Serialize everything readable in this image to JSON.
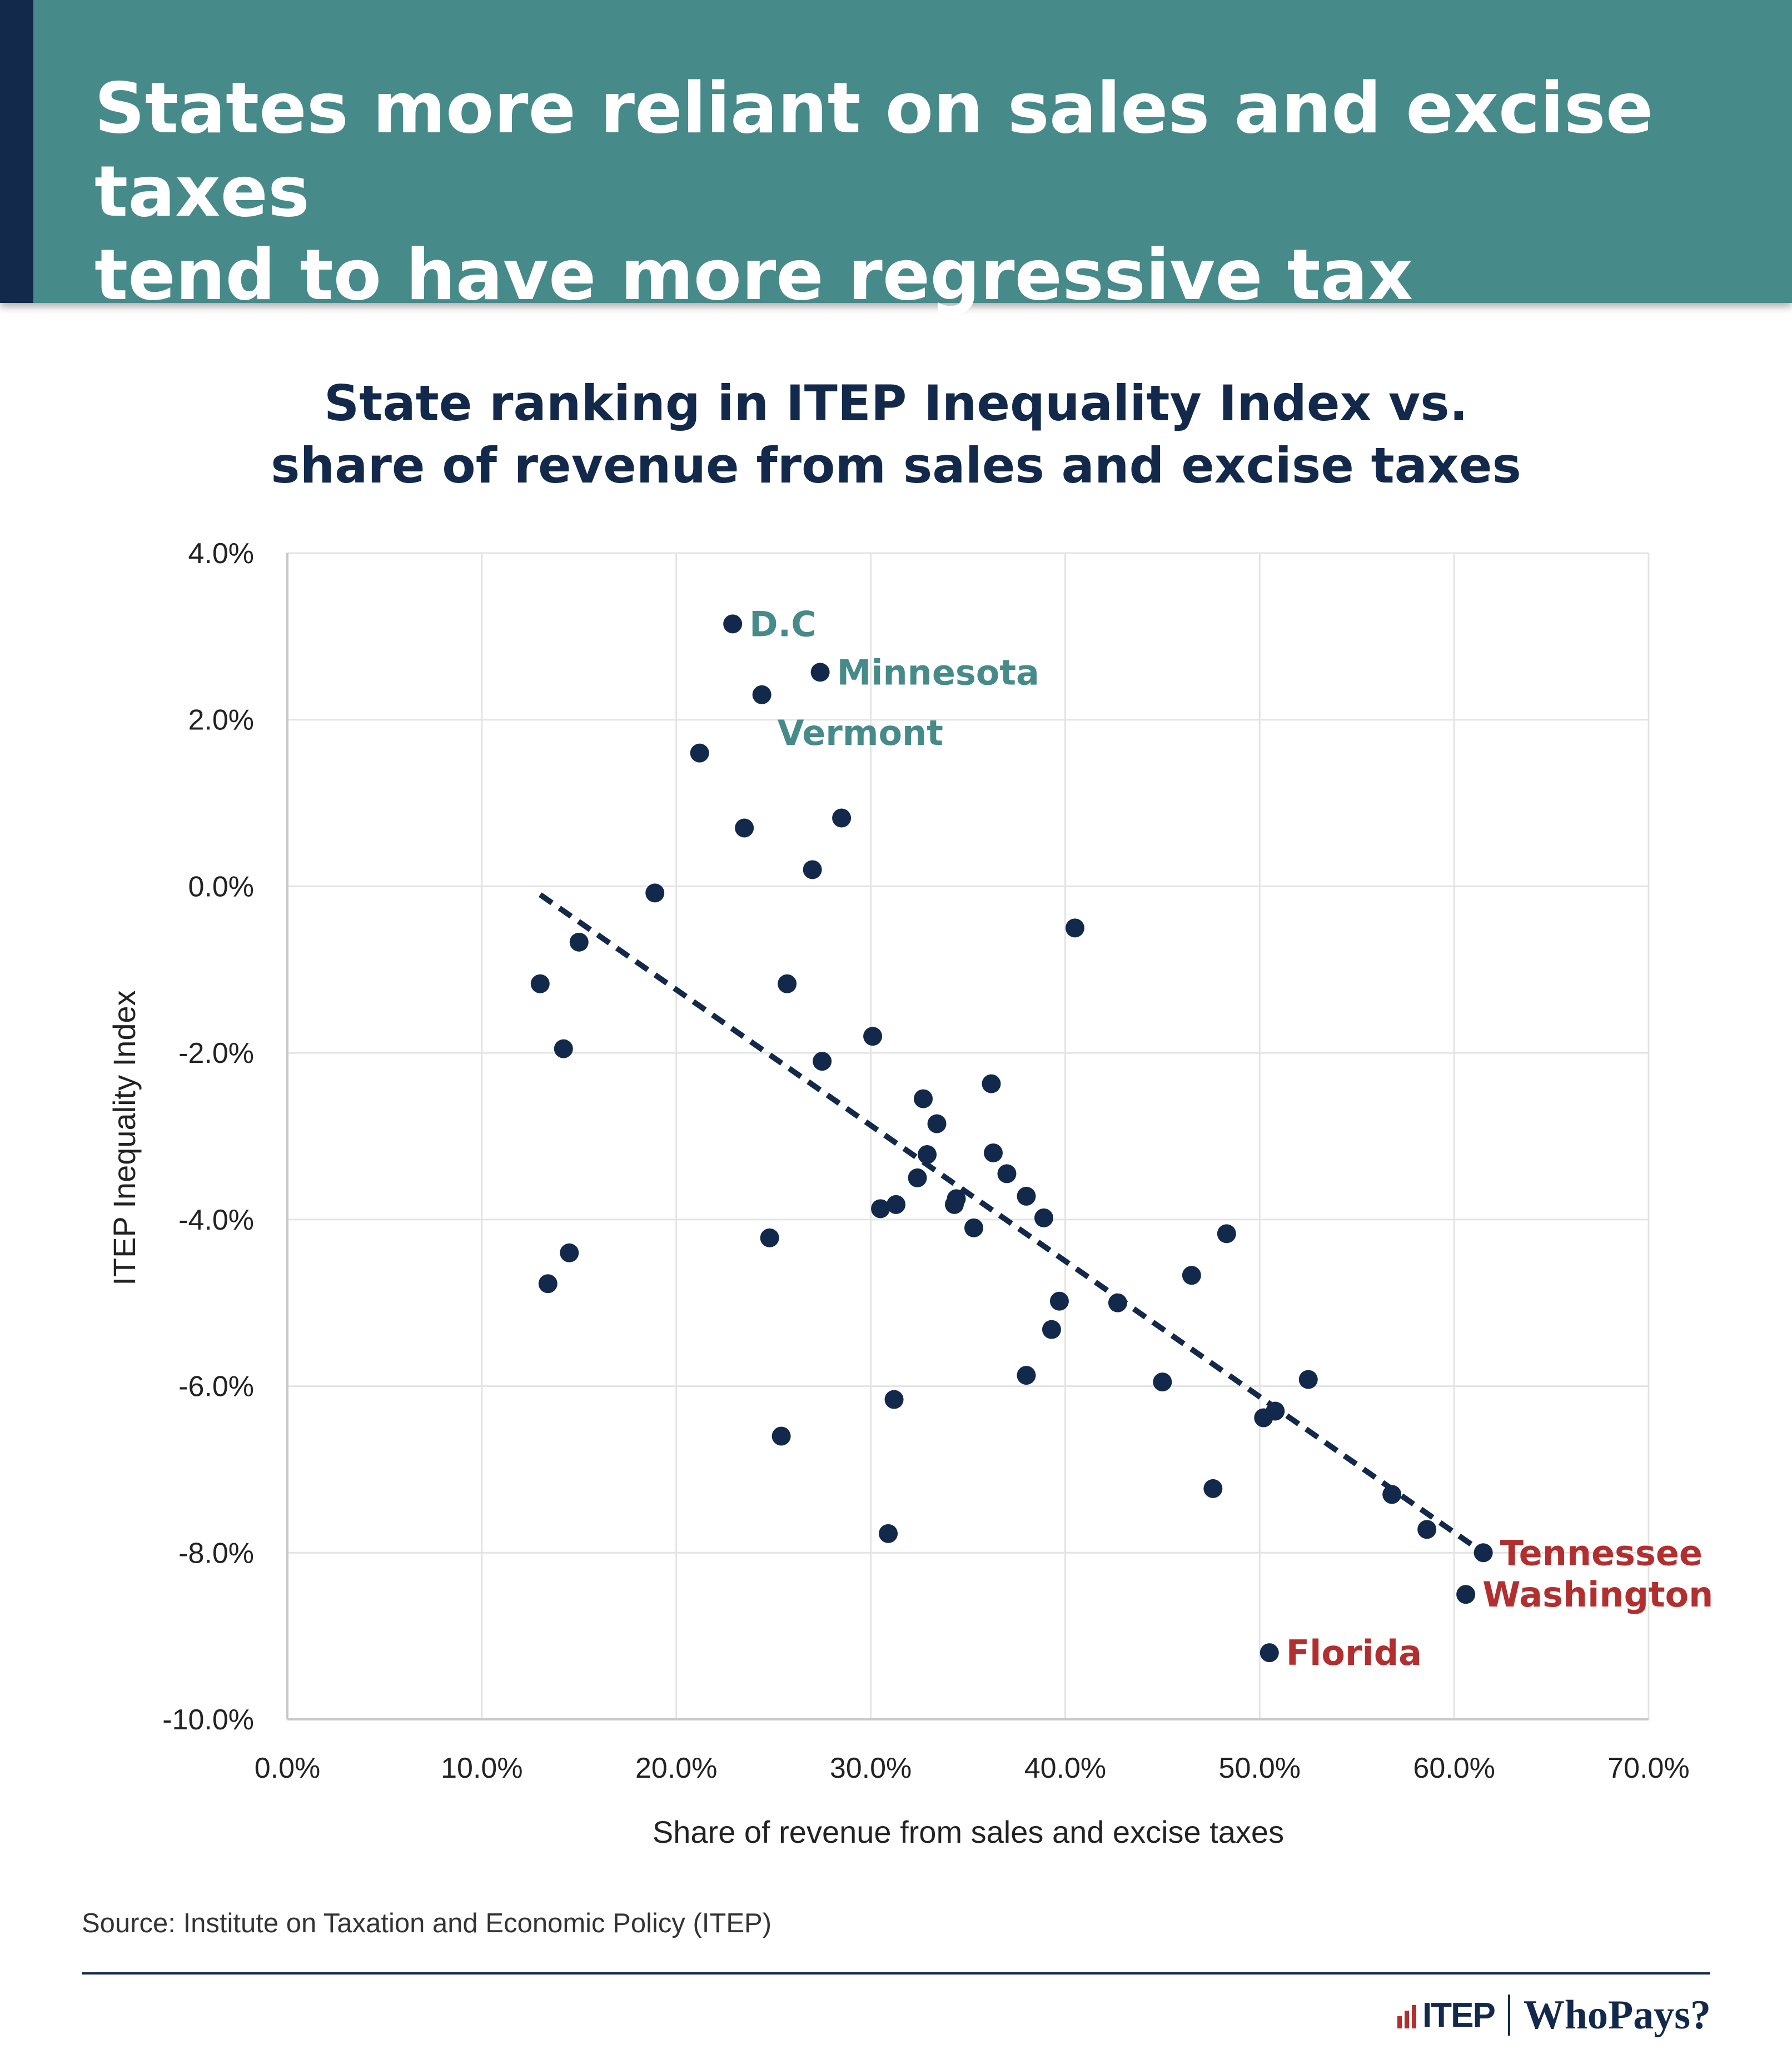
{
  "header": {
    "headline_line1": "States more reliant on sales and excise taxes",
    "headline_line2": "tend to have more regressive tax systems."
  },
  "colors": {
    "banner": "#478a8a",
    "banner_accent": "#13294b",
    "navy": "#13294b",
    "teal_label": "#478a8a",
    "red_label": "#b12f2f",
    "grid": "#e4e4e4"
  },
  "chart_data": {
    "type": "scatter",
    "title_line1": "State ranking in ITEP Inequality Index vs.",
    "title_line2": "share of revenue from sales and excise taxes",
    "xlabel": "Share of revenue from sales and excise taxes",
    "ylabel": "ITEP Inequality Index",
    "xlim": [
      0,
      70
    ],
    "ylim": [
      -10,
      4
    ],
    "x_ticks": [
      0,
      10,
      20,
      30,
      40,
      50,
      60,
      70
    ],
    "x_tick_labels": [
      "0.0%",
      "10.0%",
      "20.0%",
      "30.0%",
      "40.0%",
      "50.0%",
      "60.0%",
      "70.0%"
    ],
    "y_ticks": [
      4,
      2,
      0,
      -2,
      -4,
      -6,
      -8,
      -10
    ],
    "y_tick_labels": [
      "4.0%",
      "2.0%",
      "0.0%",
      "-2.0%",
      "-4.0%",
      "-6.0%",
      "-8.0%",
      "-10.0%"
    ],
    "grid": true,
    "trendline": {
      "x": [
        13.0,
        61.5
      ],
      "y": [
        -0.1,
        -8.0
      ],
      "style": "dashed"
    },
    "points": [
      {
        "x": 22.9,
        "y": 3.15,
        "label": "D.C",
        "label_color": "teal",
        "label_pos": "right"
      },
      {
        "x": 27.4,
        "y": 2.57,
        "label": "Minnesota",
        "label_color": "teal",
        "label_pos": "right"
      },
      {
        "x": 24.4,
        "y": 2.3,
        "label": "Vermont",
        "label_color": "teal",
        "label_pos": "below-right"
      },
      {
        "x": 61.5,
        "y": -8.0,
        "label": "Tennessee",
        "label_color": "red",
        "label_pos": "right"
      },
      {
        "x": 60.6,
        "y": -8.5,
        "label": "Washington",
        "label_color": "red",
        "label_pos": "right"
      },
      {
        "x": 50.5,
        "y": -9.2,
        "label": "Florida",
        "label_color": "red",
        "label_pos": "right"
      },
      {
        "x": 21.2,
        "y": 1.6
      },
      {
        "x": 23.5,
        "y": 0.7
      },
      {
        "x": 28.5,
        "y": 0.82
      },
      {
        "x": 27.0,
        "y": 0.2
      },
      {
        "x": 18.9,
        "y": -0.08
      },
      {
        "x": 15.0,
        "y": -0.67
      },
      {
        "x": 13.0,
        "y": -1.17
      },
      {
        "x": 25.7,
        "y": -1.17
      },
      {
        "x": 40.5,
        "y": -0.5
      },
      {
        "x": 14.2,
        "y": -1.95
      },
      {
        "x": 27.5,
        "y": -2.1
      },
      {
        "x": 30.1,
        "y": -1.8
      },
      {
        "x": 36.2,
        "y": -2.37
      },
      {
        "x": 32.7,
        "y": -2.55
      },
      {
        "x": 33.4,
        "y": -2.85
      },
      {
        "x": 32.9,
        "y": -3.22
      },
      {
        "x": 36.3,
        "y": -3.2
      },
      {
        "x": 37.0,
        "y": -3.45
      },
      {
        "x": 32.4,
        "y": -3.5
      },
      {
        "x": 38.0,
        "y": -3.72
      },
      {
        "x": 34.4,
        "y": -3.75
      },
      {
        "x": 34.3,
        "y": -3.82
      },
      {
        "x": 31.3,
        "y": -3.82
      },
      {
        "x": 30.5,
        "y": -3.87
      },
      {
        "x": 38.9,
        "y": -3.98
      },
      {
        "x": 35.3,
        "y": -4.1
      },
      {
        "x": 48.3,
        "y": -4.17
      },
      {
        "x": 24.8,
        "y": -4.22
      },
      {
        "x": 14.5,
        "y": -4.4
      },
      {
        "x": 13.4,
        "y": -4.77
      },
      {
        "x": 46.5,
        "y": -4.67
      },
      {
        "x": 39.7,
        "y": -4.98
      },
      {
        "x": 42.7,
        "y": -5.0
      },
      {
        "x": 39.3,
        "y": -5.32
      },
      {
        "x": 38.0,
        "y": -5.87
      },
      {
        "x": 45.0,
        "y": -5.95
      },
      {
        "x": 52.5,
        "y": -5.92
      },
      {
        "x": 31.2,
        "y": -6.16
      },
      {
        "x": 50.2,
        "y": -6.38
      },
      {
        "x": 50.8,
        "y": -6.3
      },
      {
        "x": 25.4,
        "y": -6.6
      },
      {
        "x": 47.6,
        "y": -7.23
      },
      {
        "x": 56.8,
        "y": -7.3
      },
      {
        "x": 58.6,
        "y": -7.72
      },
      {
        "x": 30.9,
        "y": -7.77
      }
    ]
  },
  "footer": {
    "source": "Source: Institute on Taxation and Economic Policy (ITEP)",
    "logo_itep": "ITEP",
    "logo_whopays": "WhoPays?"
  }
}
